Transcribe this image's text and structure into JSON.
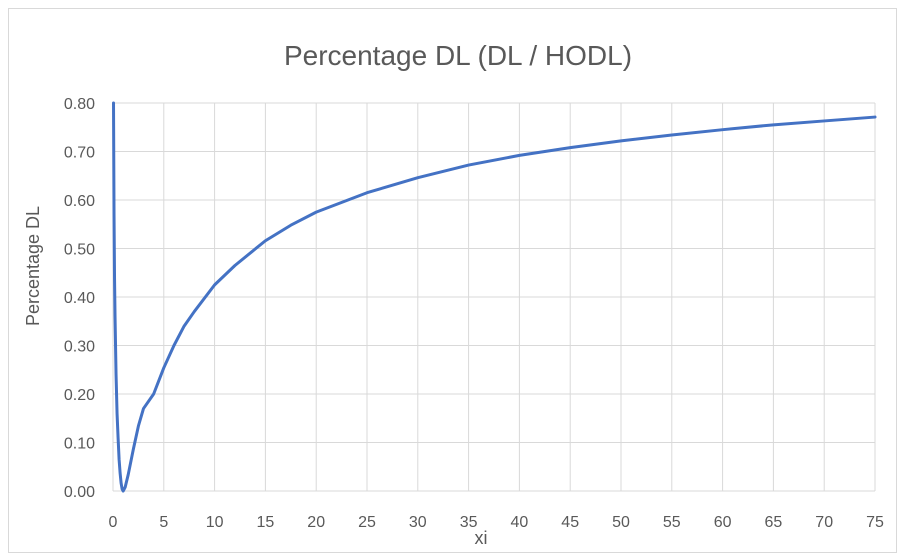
{
  "chart_data": {
    "type": "line",
    "title": "Percentage DL (DL / HODL)",
    "xlabel": "xi",
    "ylabel": "Percentage DL",
    "xlim": [
      0,
      75
    ],
    "ylim": [
      0,
      0.8
    ],
    "x_ticks": [
      "0",
      "5",
      "10",
      "15",
      "20",
      "25",
      "30",
      "35",
      "40",
      "45",
      "50",
      "55",
      "60",
      "65",
      "70",
      "75"
    ],
    "y_ticks": [
      "0.00",
      "0.10",
      "0.20",
      "0.30",
      "0.40",
      "0.50",
      "0.60",
      "0.70",
      "0.80"
    ],
    "grid": true,
    "legend": "none",
    "series": [
      {
        "color": "#4472c4",
        "x": [
          0.05,
          0.1,
          0.15,
          0.2,
          0.3,
          0.4,
          0.5,
          0.6,
          0.7,
          0.8,
          0.9,
          1,
          1.2,
          1.5,
          2,
          2.5,
          3,
          4,
          5,
          6,
          7,
          8,
          10,
          12,
          15,
          17.5,
          20,
          25,
          30,
          35,
          40,
          45,
          50,
          55,
          60,
          65,
          70,
          75
        ],
        "y": [
          0.8,
          0.57,
          0.44,
          0.36,
          0.24,
          0.16,
          0.11,
          0.065,
          0.037,
          0.016,
          0.004,
          0.0,
          0.008,
          0.034,
          0.086,
          0.134,
          0.17,
          0.2,
          0.254,
          0.3,
          0.34,
          0.37,
          0.425,
          0.465,
          0.516,
          0.548,
          0.575,
          0.615,
          0.646,
          0.672,
          0.692,
          0.708,
          0.722,
          0.734,
          0.745,
          0.755,
          0.763,
          0.771
        ]
      }
    ]
  }
}
